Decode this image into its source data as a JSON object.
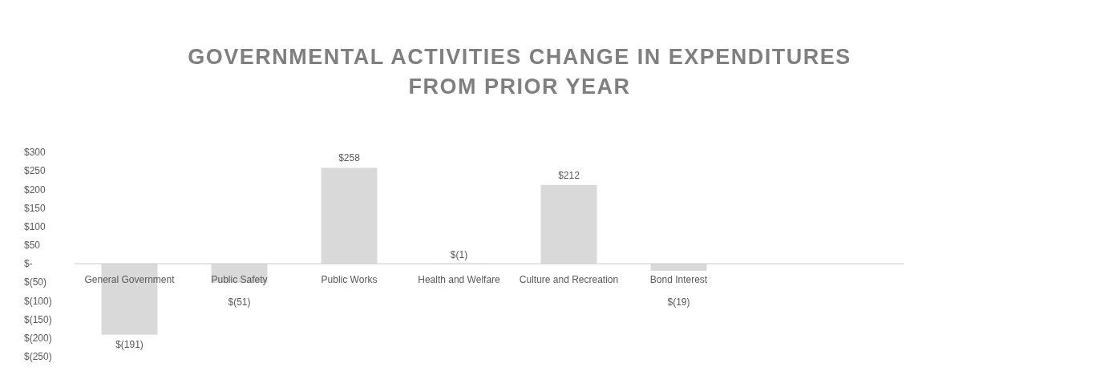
{
  "chart_data": {
    "type": "bar",
    "title": "GOVERNMENTAL ACTIVITIES CHANGE IN EXPENDITURES FROM PRIOR YEAR",
    "categories": [
      "General Government",
      "Public Safety",
      "Public Works",
      "Health and Welfare",
      "Culture and Recreation",
      "Bond Interest",
      null
    ],
    "values": [
      -191,
      -51,
      258,
      -1,
      212,
      -19,
      null
    ],
    "value_labels": [
      "$(191)",
      "$(51)",
      "$258",
      "$(1)",
      "$212",
      "$(19)",
      null
    ],
    "color": "#d9d9d9",
    "ylim": [
      -250,
      300
    ],
    "yticks": [
      {
        "value": 300,
        "label": "$300"
      },
      {
        "value": 250,
        "label": "$250"
      },
      {
        "value": 200,
        "label": "$200"
      },
      {
        "value": 150,
        "label": "$150"
      },
      {
        "value": 100,
        "label": "$100"
      },
      {
        "value": 50,
        "label": "$50"
      },
      {
        "value": 0,
        "label": "$-"
      },
      {
        "value": -50,
        "label": "$(50)"
      },
      {
        "value": -100,
        "label": "$(100)"
      },
      {
        "value": -150,
        "label": "$(150)"
      },
      {
        "value": -200,
        "label": "$(200)"
      },
      {
        "value": -250,
        "label": "$(250)"
      }
    ],
    "grid": false
  }
}
